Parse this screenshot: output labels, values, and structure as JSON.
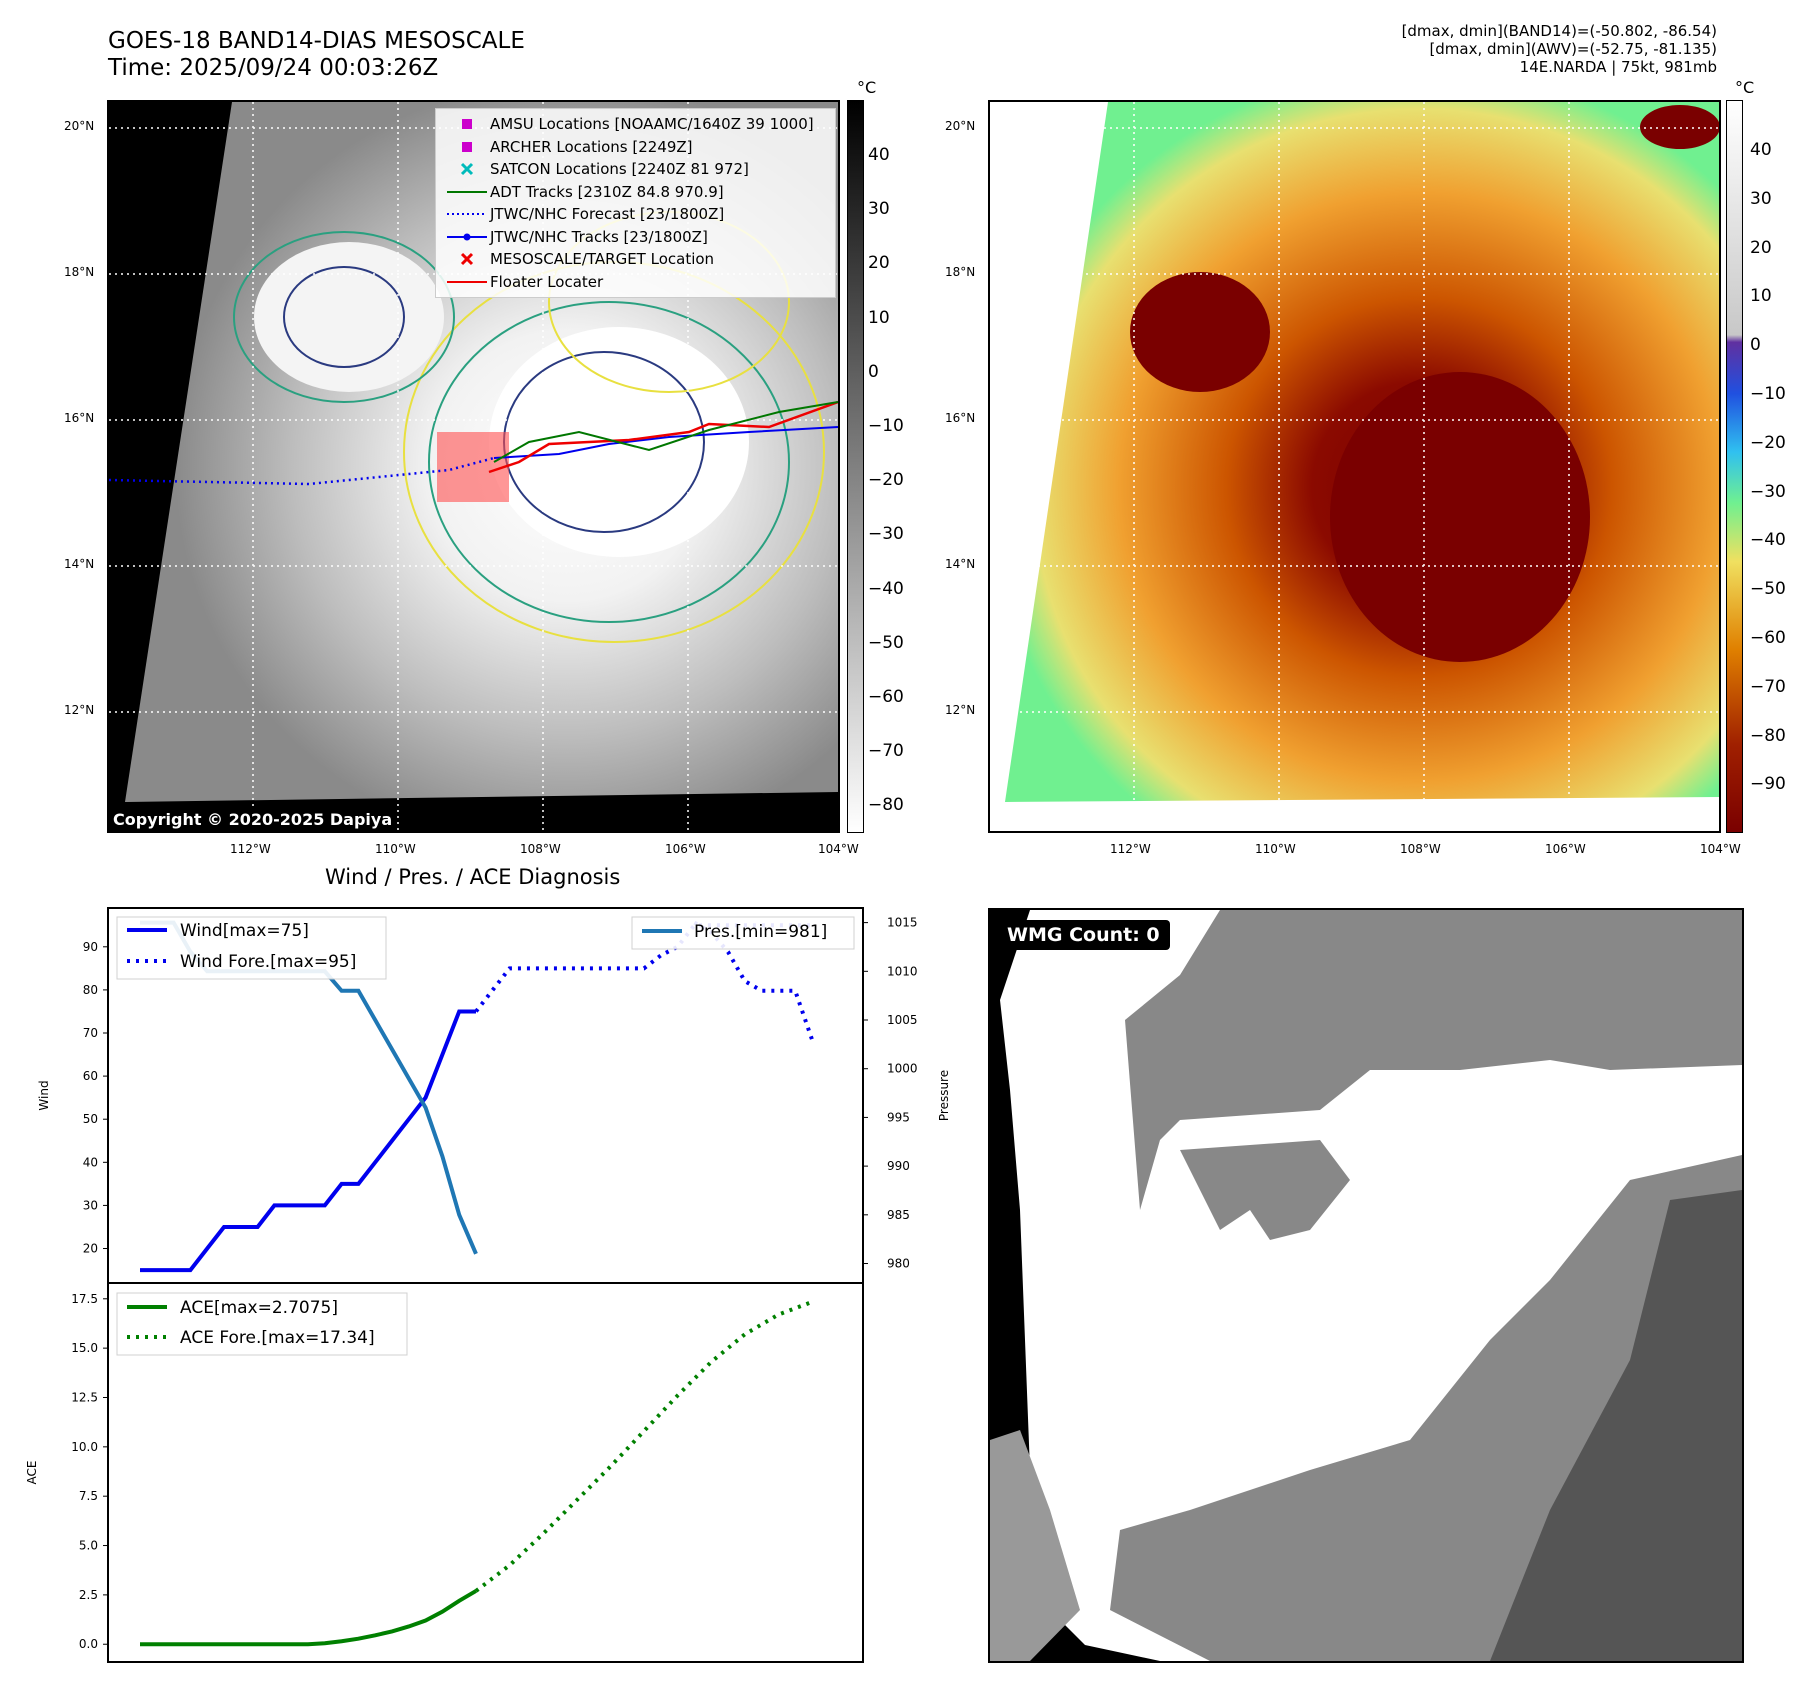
{
  "header": {
    "title_line1": "GOES-18 BAND14-DIAS MESOSCALE",
    "title_line2": "Time: 2025/09/24 00:03:26Z",
    "meta_line1": "[dmax, dmin](BAND14)=(-50.802, -86.54)",
    "meta_line2": "[dmax, dmin](AWV)=(-52.75, -81.135)",
    "meta_line3": "14E.NARDA | 75kt, 981mb"
  },
  "map_left": {
    "unit": "°C",
    "lat_ticks": [
      "20°N",
      "18°N",
      "16°N",
      "14°N",
      "12°N"
    ],
    "lon_ticks": [
      "112°W",
      "110°W",
      "108°W",
      "106°W",
      "104°W"
    ],
    "colorbar_ticks": [
      "40",
      "30",
      "20",
      "10",
      "0",
      "−10",
      "−20",
      "−30",
      "−40",
      "−50",
      "−60",
      "−70",
      "−80"
    ],
    "copyright": "Copyright © 2020-2025 Dapiya",
    "legend": [
      {
        "label": "AMSU Locations [NOAAMC/1640Z 39 1000]",
        "symbol": "square",
        "color": "#cc00cc"
      },
      {
        "label": "ARCHER Locations [2249Z]",
        "symbol": "square",
        "color": "#cc00cc"
      },
      {
        "label": "SATCON Locations [2240Z 81 972]",
        "symbol": "x",
        "color": "#00bbbb"
      },
      {
        "label": "ADT Tracks [2310Z 84.8 970.9]",
        "symbol": "line",
        "color": "#007700"
      },
      {
        "label": "JTWC/NHC Forecast [23/1800Z]",
        "symbol": "dotted",
        "color": "#0000ee"
      },
      {
        "label": "JTWC/NHC Tracks [23/1800Z]",
        "symbol": "line-dot",
        "color": "#0000ee"
      },
      {
        "label": "MESOSCALE/TARGET Location",
        "symbol": "x",
        "color": "#ee0000"
      },
      {
        "label": "Floater Locater",
        "symbol": "line",
        "color": "#ee0000"
      }
    ]
  },
  "map_right": {
    "unit": "°C",
    "lat_ticks": [
      "20°N",
      "18°N",
      "16°N",
      "14°N",
      "12°N"
    ],
    "lon_ticks": [
      "112°W",
      "110°W",
      "108°W",
      "106°W",
      "104°W"
    ],
    "colorbar_ticks": [
      "40",
      "30",
      "20",
      "10",
      "0",
      "−10",
      "−20",
      "−30",
      "−40",
      "−50",
      "−60",
      "−70",
      "−80",
      "−90"
    ]
  },
  "chart_data": [
    {
      "type": "line",
      "title": "Wind / Pres. / ACE Diagnosis",
      "ylabel": "Wind",
      "ylabel_right": "Pressure",
      "ylim": [
        12,
        99
      ],
      "ylim_right": [
        978,
        1016.5
      ],
      "yticks": [
        20,
        30,
        40,
        50,
        60,
        70,
        80,
        90
      ],
      "yticks_right": [
        980,
        985,
        990,
        995,
        1000,
        1005,
        1010,
        1015
      ],
      "x": [
        0,
        1,
        2,
        3,
        4,
        5,
        6,
        7,
        8,
        9,
        10,
        11,
        12,
        13,
        14,
        15,
        16,
        17,
        18,
        19,
        20,
        21,
        22,
        23,
        24,
        25,
        26,
        27,
        28,
        29,
        30,
        31,
        32,
        33,
        34,
        35,
        36,
        37,
        38,
        39,
        40
      ],
      "series": [
        {
          "name": "Wind[max=75]",
          "axis": "left",
          "style": "solid",
          "color": "#0000ee",
          "x": [
            0,
            1,
            2,
            3,
            4,
            5,
            6,
            7,
            8,
            9,
            10,
            11,
            12,
            13,
            14,
            15,
            16,
            17,
            18,
            19,
            20
          ],
          "values": [
            15,
            15,
            15,
            15,
            20,
            25,
            25,
            25,
            30,
            30,
            30,
            30,
            35,
            35,
            40,
            45,
            50,
            55,
            65,
            75,
            75
          ]
        },
        {
          "name": "Wind Fore.[max=95]",
          "axis": "left",
          "style": "dotted",
          "color": "#0000ee",
          "x": [
            20,
            21,
            22,
            23,
            24,
            25,
            26,
            27,
            28,
            29,
            30,
            31,
            32,
            33,
            34,
            35,
            36,
            37,
            38,
            39,
            40
          ],
          "values": [
            75,
            80,
            85,
            85,
            85,
            85,
            85,
            85,
            85,
            85,
            85,
            88,
            90,
            95,
            95,
            95,
            95,
            95,
            95,
            95,
            95
          ]
        },
        {
          "name": "Pres.[min=981]",
          "axis": "right",
          "style": "solid",
          "color": "#1f77b4",
          "x": [
            0,
            1,
            2,
            3,
            4,
            5,
            6,
            7,
            8,
            9,
            10,
            11,
            12,
            13,
            14,
            15,
            16,
            17,
            18,
            19,
            20
          ],
          "values": [
            1015,
            1015,
            1015,
            1012,
            1010,
            1010,
            1010,
            1010,
            1010,
            1010,
            1010,
            1010,
            1008,
            1008,
            1005,
            1002,
            999,
            996,
            991,
            985,
            981
          ]
        },
        {
          "name": "",
          "axis": "right",
          "style": "dotted",
          "color": "#0000ee",
          "x": [
            33,
            34,
            35,
            36,
            37,
            38,
            39,
            40
          ],
          "values": [
            1015,
            1014,
            1012,
            1009,
            1008,
            1008,
            1008,
            1003
          ]
        }
      ]
    },
    {
      "type": "line",
      "ylabel": "ACE",
      "ylim": [
        -0.9,
        18.3
      ],
      "yticks": [
        0.0,
        2.5,
        5.0,
        7.5,
        10.0,
        12.5,
        15.0,
        17.5
      ],
      "series": [
        {
          "name": "ACE[max=2.7075]",
          "style": "solid",
          "color": "#008000",
          "x": [
            0,
            1,
            2,
            3,
            4,
            5,
            6,
            7,
            8,
            9,
            10,
            11,
            12,
            13,
            14,
            15,
            16,
            17,
            18,
            19,
            20
          ],
          "values": [
            0,
            0,
            0,
            0,
            0,
            0,
            0,
            0,
            0,
            0,
            0,
            0.05,
            0.15,
            0.28,
            0.45,
            0.65,
            0.9,
            1.2,
            1.65,
            2.2,
            2.7
          ]
        },
        {
          "name": "ACE Fore.[max=17.34]",
          "style": "dotted",
          "color": "#008000",
          "x": [
            20,
            22,
            24,
            26,
            28,
            30,
            32,
            34,
            36,
            38,
            40
          ],
          "values": [
            2.7,
            4.0,
            5.6,
            7.3,
            9.0,
            10.8,
            12.6,
            14.3,
            15.7,
            16.7,
            17.34
          ]
        }
      ]
    }
  ],
  "wmg": {
    "badge": "WMG Count: 0"
  }
}
